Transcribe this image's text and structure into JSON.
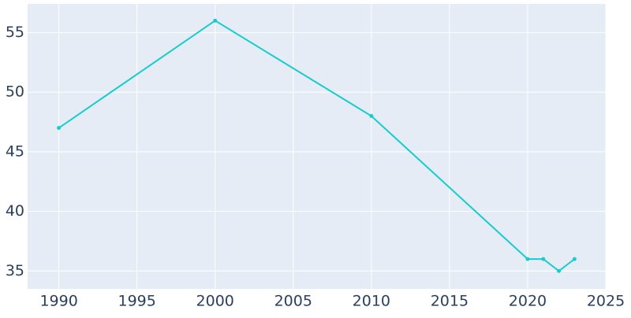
{
  "chart_data": {
    "type": "line",
    "x": [
      1990,
      2000,
      2010,
      2020,
      2021,
      2022,
      2023
    ],
    "values": [
      47,
      56,
      48,
      36,
      36,
      35,
      36
    ],
    "color": "#17cccc",
    "xlim": [
      1988,
      2025
    ],
    "xticks": [
      1990,
      1995,
      2000,
      2005,
      2010,
      2015,
      2020,
      2025
    ],
    "ylim": [
      33.5,
      57.4
    ],
    "yticks": [
      35,
      40,
      45,
      50,
      55
    ],
    "grid": true
  }
}
